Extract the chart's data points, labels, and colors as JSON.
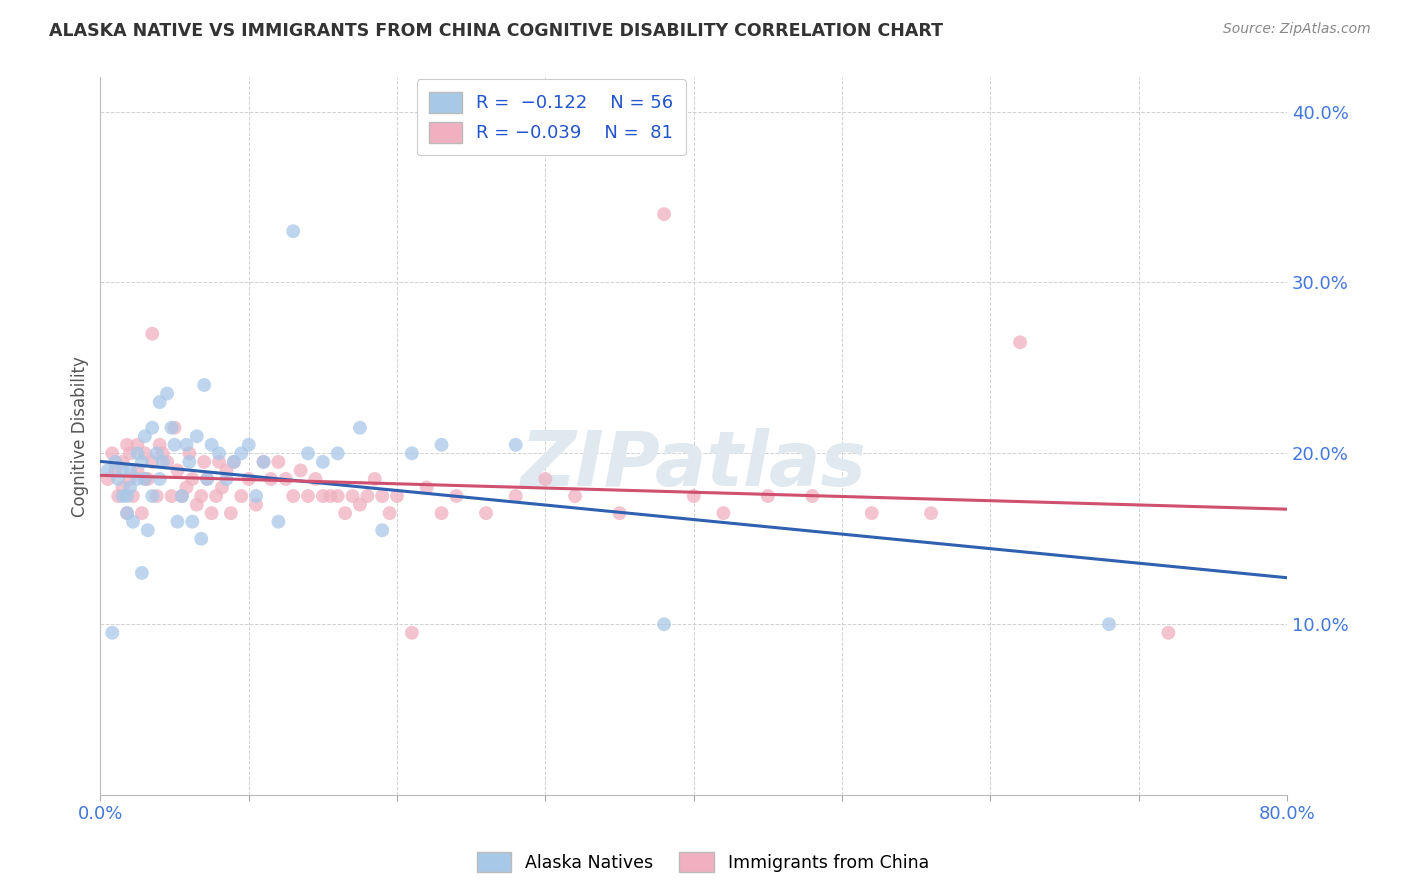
{
  "title": "ALASKA NATIVE VS IMMIGRANTS FROM CHINA COGNITIVE DISABILITY CORRELATION CHART",
  "source": "Source: ZipAtlas.com",
  "ylabel": "Cognitive Disability",
  "xlim": [
    0.0,
    0.8
  ],
  "ylim": [
    0.0,
    0.42
  ],
  "ytick_vals": [
    0.0,
    0.1,
    0.2,
    0.3,
    0.4
  ],
  "ytick_labels": [
    "",
    "10.0%",
    "20.0%",
    "30.0%",
    "40.0%"
  ],
  "xtick_vals": [
    0.0,
    0.1,
    0.2,
    0.3,
    0.4,
    0.5,
    0.6,
    0.7,
    0.8
  ],
  "xtick_labels": [
    "0.0%",
    "",
    "",
    "",
    "",
    "",
    "",
    "",
    "80.0%"
  ],
  "blue_color": "#a8c8e8",
  "pink_color": "#f0b0c0",
  "blue_line_color": "#3060b0",
  "pink_line_color": "#d05070",
  "watermark": "ZIPatlas",
  "alaska_x": [
    0.005,
    0.008,
    0.01,
    0.012,
    0.015,
    0.015,
    0.018,
    0.018,
    0.02,
    0.02,
    0.022,
    0.025,
    0.025,
    0.028,
    0.028,
    0.03,
    0.03,
    0.032,
    0.035,
    0.035,
    0.038,
    0.04,
    0.04,
    0.042,
    0.045,
    0.048,
    0.05,
    0.052,
    0.055,
    0.058,
    0.06,
    0.062,
    0.065,
    0.068,
    0.07,
    0.072,
    0.075,
    0.08,
    0.085,
    0.09,
    0.095,
    0.1,
    0.105,
    0.11,
    0.12,
    0.13,
    0.14,
    0.15,
    0.16,
    0.175,
    0.19,
    0.21,
    0.23,
    0.28,
    0.38,
    0.68
  ],
  "alaska_y": [
    0.19,
    0.095,
    0.195,
    0.185,
    0.19,
    0.175,
    0.175,
    0.165,
    0.18,
    0.19,
    0.16,
    0.2,
    0.185,
    0.13,
    0.195,
    0.21,
    0.185,
    0.155,
    0.215,
    0.175,
    0.2,
    0.23,
    0.185,
    0.195,
    0.235,
    0.215,
    0.205,
    0.16,
    0.175,
    0.205,
    0.195,
    0.16,
    0.21,
    0.15,
    0.24,
    0.185,
    0.205,
    0.2,
    0.185,
    0.195,
    0.2,
    0.205,
    0.175,
    0.195,
    0.16,
    0.33,
    0.2,
    0.195,
    0.2,
    0.215,
    0.155,
    0.2,
    0.205,
    0.205,
    0.1,
    0.1
  ],
  "china_x": [
    0.005,
    0.008,
    0.01,
    0.012,
    0.015,
    0.015,
    0.018,
    0.018,
    0.02,
    0.02,
    0.022,
    0.025,
    0.025,
    0.028,
    0.03,
    0.03,
    0.032,
    0.035,
    0.035,
    0.038,
    0.04,
    0.042,
    0.045,
    0.048,
    0.05,
    0.052,
    0.055,
    0.058,
    0.06,
    0.062,
    0.065,
    0.068,
    0.07,
    0.072,
    0.075,
    0.078,
    0.08,
    0.082,
    0.085,
    0.088,
    0.09,
    0.095,
    0.1,
    0.105,
    0.11,
    0.115,
    0.12,
    0.125,
    0.13,
    0.135,
    0.14,
    0.145,
    0.15,
    0.155,
    0.16,
    0.165,
    0.17,
    0.175,
    0.18,
    0.185,
    0.19,
    0.195,
    0.2,
    0.21,
    0.22,
    0.23,
    0.24,
    0.26,
    0.28,
    0.3,
    0.32,
    0.35,
    0.38,
    0.4,
    0.42,
    0.45,
    0.48,
    0.52,
    0.56,
    0.62,
    0.72
  ],
  "china_y": [
    0.185,
    0.2,
    0.19,
    0.175,
    0.195,
    0.18,
    0.205,
    0.165,
    0.2,
    0.185,
    0.175,
    0.205,
    0.19,
    0.165,
    0.2,
    0.185,
    0.185,
    0.27,
    0.195,
    0.175,
    0.205,
    0.2,
    0.195,
    0.175,
    0.215,
    0.19,
    0.175,
    0.18,
    0.2,
    0.185,
    0.17,
    0.175,
    0.195,
    0.185,
    0.165,
    0.175,
    0.195,
    0.18,
    0.19,
    0.165,
    0.195,
    0.175,
    0.185,
    0.17,
    0.195,
    0.185,
    0.195,
    0.185,
    0.175,
    0.19,
    0.175,
    0.185,
    0.175,
    0.175,
    0.175,
    0.165,
    0.175,
    0.17,
    0.175,
    0.185,
    0.175,
    0.165,
    0.175,
    0.095,
    0.18,
    0.165,
    0.175,
    0.165,
    0.175,
    0.185,
    0.175,
    0.165,
    0.34,
    0.175,
    0.165,
    0.175,
    0.175,
    0.165,
    0.165,
    0.265,
    0.095
  ]
}
